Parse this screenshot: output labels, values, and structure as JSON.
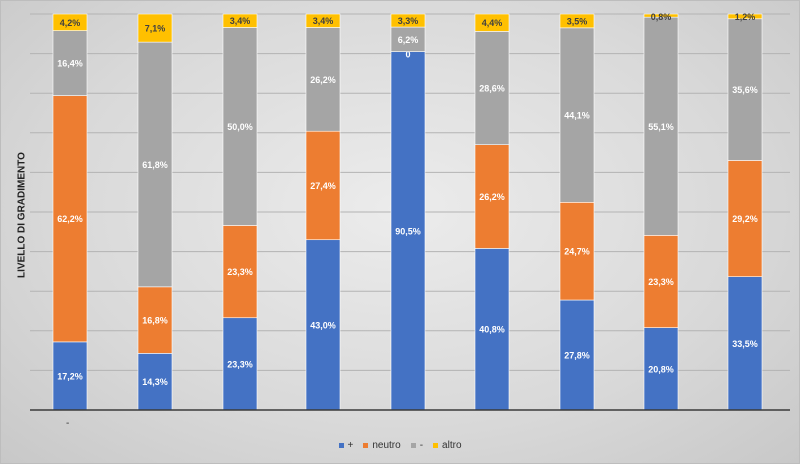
{
  "chart_data": {
    "type": "bar",
    "stacked": true,
    "percent_stacked": true,
    "ylabel": "LIVELLO DI GRADIMENTO",
    "x_tick_label": "-",
    "categories": [
      "",
      "",
      "",
      "",
      "",
      "",
      "",
      "",
      ""
    ],
    "series": [
      {
        "name": "+",
        "color": "#4472C4",
        "values": [
          17.2,
          14.3,
          23.3,
          43.0,
          90.5,
          40.8,
          27.8,
          20.8,
          33.5
        ],
        "labels": [
          "17,2%",
          "14,3%",
          "23,3%",
          "43,0%",
          "90,5%",
          "40,8%",
          "27,8%",
          "20,8%",
          "33,5%"
        ]
      },
      {
        "name": "neutro",
        "color": "#ED7D31",
        "values": [
          62.2,
          16.8,
          23.3,
          27.4,
          0,
          26.2,
          24.7,
          23.3,
          29.2
        ],
        "labels": [
          "62,2%",
          "16,8%",
          "23,3%",
          "27,4%",
          "0",
          "26,2%",
          "24,7%",
          "23,3%",
          "29,2%"
        ]
      },
      {
        "name": "-",
        "color": "#A5A5A5",
        "values": [
          16.4,
          61.8,
          50.0,
          26.2,
          6.2,
          28.6,
          44.1,
          55.1,
          35.6
        ],
        "labels": [
          "16,4%",
          "61,8%",
          "50,0%",
          "26,2%",
          "6,2%",
          "28,6%",
          "44,1%",
          "55,1%",
          "35,6%"
        ]
      },
      {
        "name": "altro",
        "color": "#FFC000",
        "values": [
          4.2,
          7.1,
          3.4,
          3.4,
          3.3,
          4.4,
          3.5,
          0.8,
          1.2
        ],
        "labels": [
          "4,2%",
          "7,1%",
          "3,4%",
          "3,4%",
          "3,3%",
          "4,4%",
          "3,5%",
          "0,8%",
          "1,2%"
        ]
      }
    ],
    "ylim": [
      0,
      100
    ],
    "grid": true,
    "legend_position": "bottom"
  }
}
